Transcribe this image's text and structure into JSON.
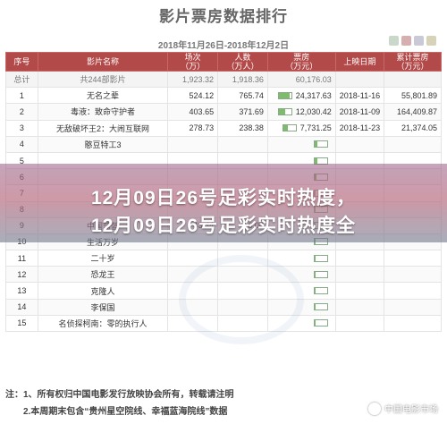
{
  "title": "影片票房数据排行",
  "date_range": "2018年11月26日-2018年12月2日",
  "colors": {
    "header": "#b34a4a",
    "bar_fill": "#7cbc6c"
  },
  "table": {
    "headers": [
      "序号",
      "影片名称",
      "场次\n（万）",
      "人数\n（万人）",
      "票房\n（万元）",
      "上映日期",
      "累计票房\n（万元）"
    ],
    "total": {
      "label": "总计",
      "name": "共244部影片",
      "sessions": "1,923.32",
      "people": "1,918.36",
      "box": "60,176.03"
    },
    "rows": [
      {
        "rank": "1",
        "name": "无名之辈",
        "sessions": "524.12",
        "people": "765.74",
        "box": "24,317.63",
        "date": "2018-11-16",
        "cum": "55,801.89",
        "bar": 0.9
      },
      {
        "rank": "2",
        "name": "毒液：致命守护者",
        "sessions": "403.65",
        "people": "371.69",
        "box": "12,030.42",
        "date": "2018-11-09",
        "cum": "164,409.87",
        "bar": 0.55
      },
      {
        "rank": "3",
        "name": "无敌破坏王2：大闹互联网",
        "sessions": "278.73",
        "people": "238.38",
        "box": "7,731.25",
        "date": "2018-11-23",
        "cum": "21,374.05",
        "bar": 0.35
      },
      {
        "rank": "4",
        "name": "憨豆特工3",
        "sessions": "",
        "people": "",
        "box": "",
        "date": "",
        "cum": "",
        "bar": 0.25
      },
      {
        "rank": "5",
        "name": "",
        "sessions": "",
        "people": "",
        "box": "",
        "date": "",
        "cum": "",
        "bar": 0.2
      },
      {
        "rank": "6",
        "name": "",
        "sessions": "",
        "people": "",
        "box": "",
        "date": "",
        "cum": "",
        "bar": 0.15
      },
      {
        "rank": "7",
        "name": "",
        "sessions": "",
        "people": "",
        "box": "",
        "date": "",
        "cum": "",
        "bar": 0.12
      },
      {
        "rank": "8",
        "name": "",
        "sessions": "",
        "people": "",
        "box": "",
        "date": "",
        "cum": "",
        "bar": 0.1
      },
      {
        "rank": "9",
        "name": "中国蓝盔",
        "sessions": "43.44",
        "people": "16.06",
        "box": "",
        "date": "",
        "cum": "",
        "bar": 0.08
      },
      {
        "rank": "10",
        "name": "生活万岁",
        "sessions": "",
        "people": "",
        "box": "",
        "date": "",
        "cum": "",
        "bar": 0.07
      },
      {
        "rank": "11",
        "name": "二十岁",
        "sessions": "",
        "people": "",
        "box": "",
        "date": "",
        "cum": "",
        "bar": 0.07
      },
      {
        "rank": "12",
        "name": "恐龙王",
        "sessions": "",
        "people": "",
        "box": "",
        "date": "",
        "cum": "",
        "bar": 0.06
      },
      {
        "rank": "13",
        "name": "克隆人",
        "sessions": "",
        "people": "",
        "box": "",
        "date": "",
        "cum": "",
        "bar": 0.05
      },
      {
        "rank": "14",
        "name": "李保国",
        "sessions": "",
        "people": "",
        "box": "",
        "date": "",
        "cum": "",
        "bar": 0.04
      },
      {
        "rank": "15",
        "name": "名侦探柯南：零的执行人",
        "sessions": "",
        "people": "",
        "box": "",
        "date": "",
        "cum": "",
        "bar": 0.04
      }
    ]
  },
  "overlay": {
    "line1": "12月09日26号足彩实时热度，",
    "line2": "12月09日26号足彩实时热度全"
  },
  "notes": {
    "label": "注：",
    "n1": "1、所有权归中国电影发行放映协会所有，转载请注明",
    "n2": "2.本周期末包含“贵州星空院线、幸福蓝海院线”数据"
  },
  "watermark": "中国电影市场"
}
